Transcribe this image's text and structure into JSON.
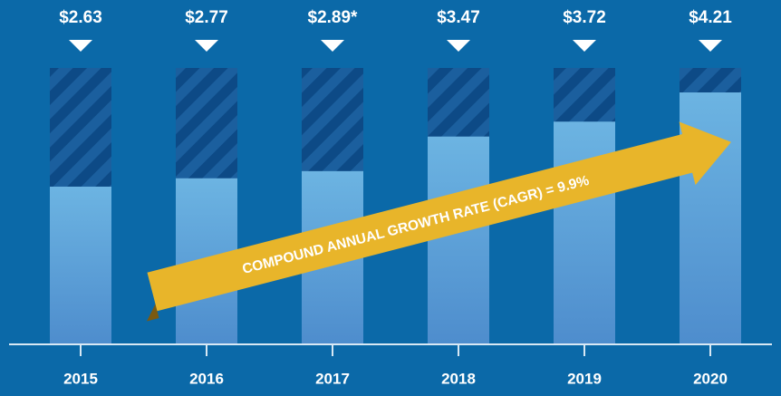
{
  "chart_data": {
    "type": "bar",
    "categories": [
      "2015",
      "2016",
      "2017",
      "2018",
      "2019",
      "2020"
    ],
    "values": [
      2.63,
      2.77,
      2.89,
      3.47,
      3.72,
      4.21
    ],
    "value_labels": [
      "$2.63",
      "$2.77",
      "$2.89*",
      "$3.47",
      "$3.72",
      "$4.21"
    ],
    "color": "#6cb4e2",
    "annotation": "COMPOUND ANNUAL GROWTH RATE (CAGR) = 9.9%"
  }
}
